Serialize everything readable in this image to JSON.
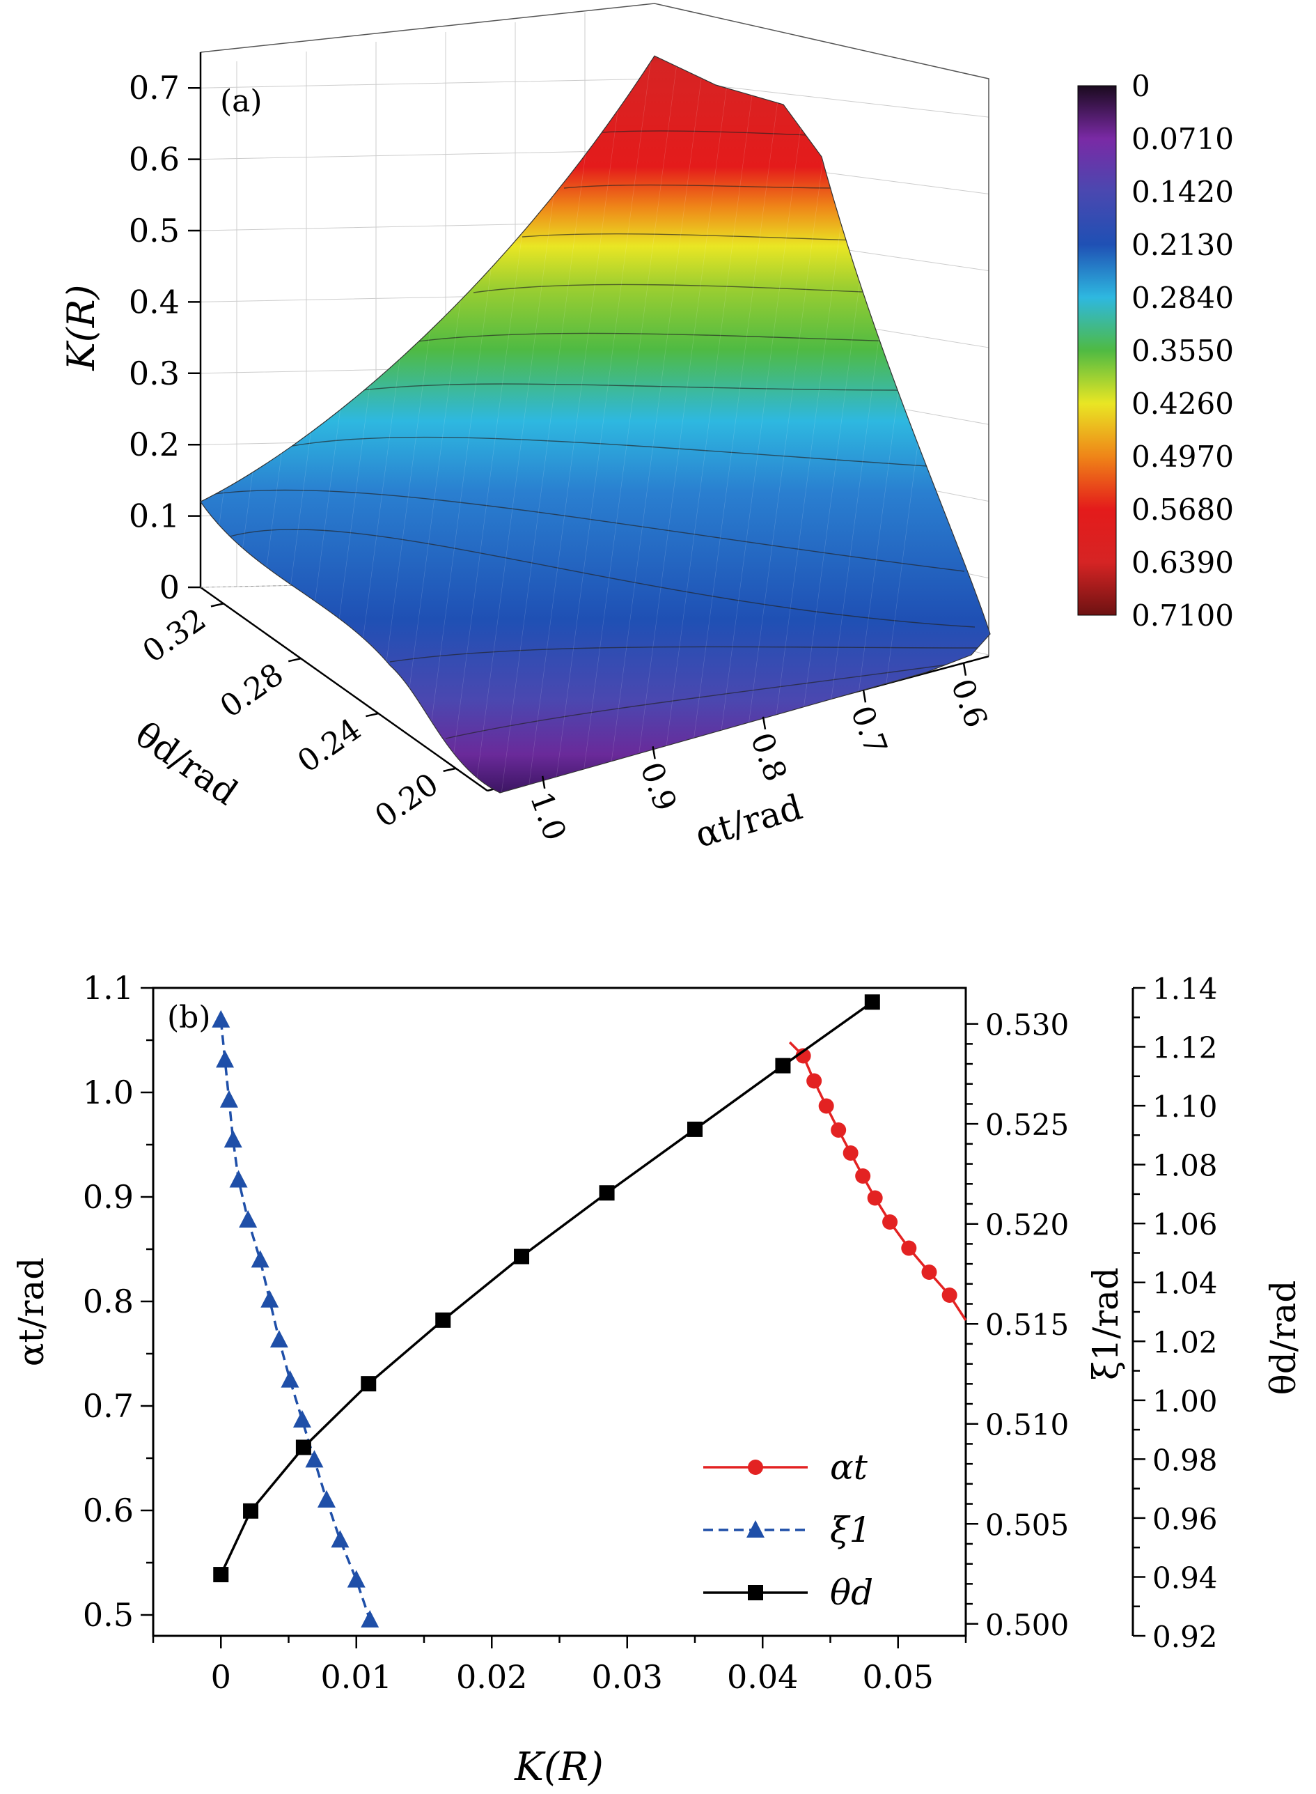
{
  "colors": {
    "alpha": "#e32222",
    "xi": "#1f4fa8",
    "theta": "#000000",
    "grid": "#cccccc"
  },
  "chart_data": [
    {
      "type": "surface",
      "panel_label": "(a)",
      "zlabel": "K(R)",
      "xlabel": "αt/rad",
      "ylabel": "θd/rad",
      "z_ticks": [
        "0",
        "0.1",
        "0.2",
        "0.3",
        "0.4",
        "0.5",
        "0.6",
        "0.7"
      ],
      "alpha_ticks": [
        "1.0",
        "0.9",
        "0.8",
        "0.7",
        "0.6"
      ],
      "theta_ticks": [
        "0.20",
        "0.24",
        "0.28",
        "0.32"
      ],
      "zlim": [
        0,
        0.75
      ],
      "corner_values": {
        "alpha_1_0_theta_0_18": 0.0,
        "alpha_1_0_theta_0_32": 0.12,
        "alpha_0_55_theta_0_18": 0.02,
        "alpha_0_55_theta_0_32": 0.74
      },
      "colorbar": {
        "labels": [
          "0",
          "0.0710",
          "0.1420",
          "0.2130",
          "0.2840",
          "0.3550",
          "0.4260",
          "0.4970",
          "0.5680",
          "0.6390",
          "0.7100"
        ],
        "colors": [
          "#1a0a1e",
          "#7a2aa5",
          "#4a48b0",
          "#1f50b4",
          "#2eb8e0",
          "#4fba43",
          "#e9e624",
          "#ef8518",
          "#e41b1b",
          "#d62424",
          "#6d1212"
        ]
      }
    },
    {
      "type": "line",
      "panel_label": "(b)",
      "xlabel": "K(R)",
      "xlim": [
        -0.005,
        0.055
      ],
      "x_ticks": [
        "0",
        "0.01",
        "0.02",
        "0.03",
        "0.04",
        "0.05"
      ],
      "y_axes": [
        {
          "label": "αt/rad",
          "side": "left",
          "lim": [
            0.48,
            1.1
          ],
          "ticks": [
            "0.5",
            "0.6",
            "0.7",
            "0.8",
            "0.9",
            "1.0",
            "1.1"
          ]
        },
        {
          "label": "ξ1/rad",
          "side": "right",
          "lim": [
            0.4994,
            0.5318
          ],
          "ticks": [
            "0.500",
            "0.505",
            "0.510",
            "0.515",
            "0.520",
            "0.525",
            "0.530"
          ]
        },
        {
          "label": "θd/rad",
          "side": "far-right",
          "lim": [
            0.92,
            1.14
          ],
          "ticks": [
            "0.92",
            "0.94",
            "0.96",
            "0.98",
            "1.00",
            "1.02",
            "1.04",
            "1.06",
            "1.08",
            "1.10",
            "1.12",
            "1.14"
          ]
        }
      ],
      "legend": {
        "position": "lower-right",
        "entries": [
          "αt",
          "ξ1",
          "θd"
        ]
      },
      "series": [
        {
          "name": "αt",
          "axis": 0,
          "marker": "circle",
          "line": "solid",
          "x": [
            0.043,
            0.0438,
            0.0447,
            0.0456,
            0.0465,
            0.0474,
            0.0483,
            0.0494,
            0.0508,
            0.0523,
            0.0538
          ],
          "y": [
            1.035,
            1.011,
            0.987,
            0.964,
            0.942,
            0.92,
            0.899,
            0.876,
            0.851,
            0.828,
            0.806
          ],
          "extends_to": [
            0.055,
            0.782
          ],
          "starts_from": [
            0.042,
            1.048
          ]
        },
        {
          "name": "ξ1",
          "axis": 1,
          "marker": "triangle",
          "line": "dashed",
          "x": [
            0.0,
            0.0003,
            0.0006,
            0.0009,
            0.0013,
            0.002,
            0.0029,
            0.0036,
            0.0043,
            0.0051,
            0.006,
            0.0069,
            0.0078,
            0.0088,
            0.01,
            0.011
          ],
          "y": [
            0.5302,
            0.5282,
            0.5262,
            0.5242,
            0.5222,
            0.5202,
            0.5182,
            0.5162,
            0.5142,
            0.5122,
            0.5102,
            0.5082,
            0.5062,
            0.5042,
            0.5022,
            0.5002
          ]
        },
        {
          "name": "θd",
          "axis": 2,
          "marker": "square",
          "line": "solid",
          "x": [
            0.0,
            0.0022,
            0.0061,
            0.0109,
            0.0164,
            0.0222,
            0.0285,
            0.035,
            0.0415,
            0.0481
          ],
          "y": [
            0.9408,
            0.9624,
            0.984,
            1.0056,
            1.0272,
            1.0488,
            1.0704,
            1.092,
            1.1136,
            1.1352
          ]
        }
      ]
    }
  ]
}
